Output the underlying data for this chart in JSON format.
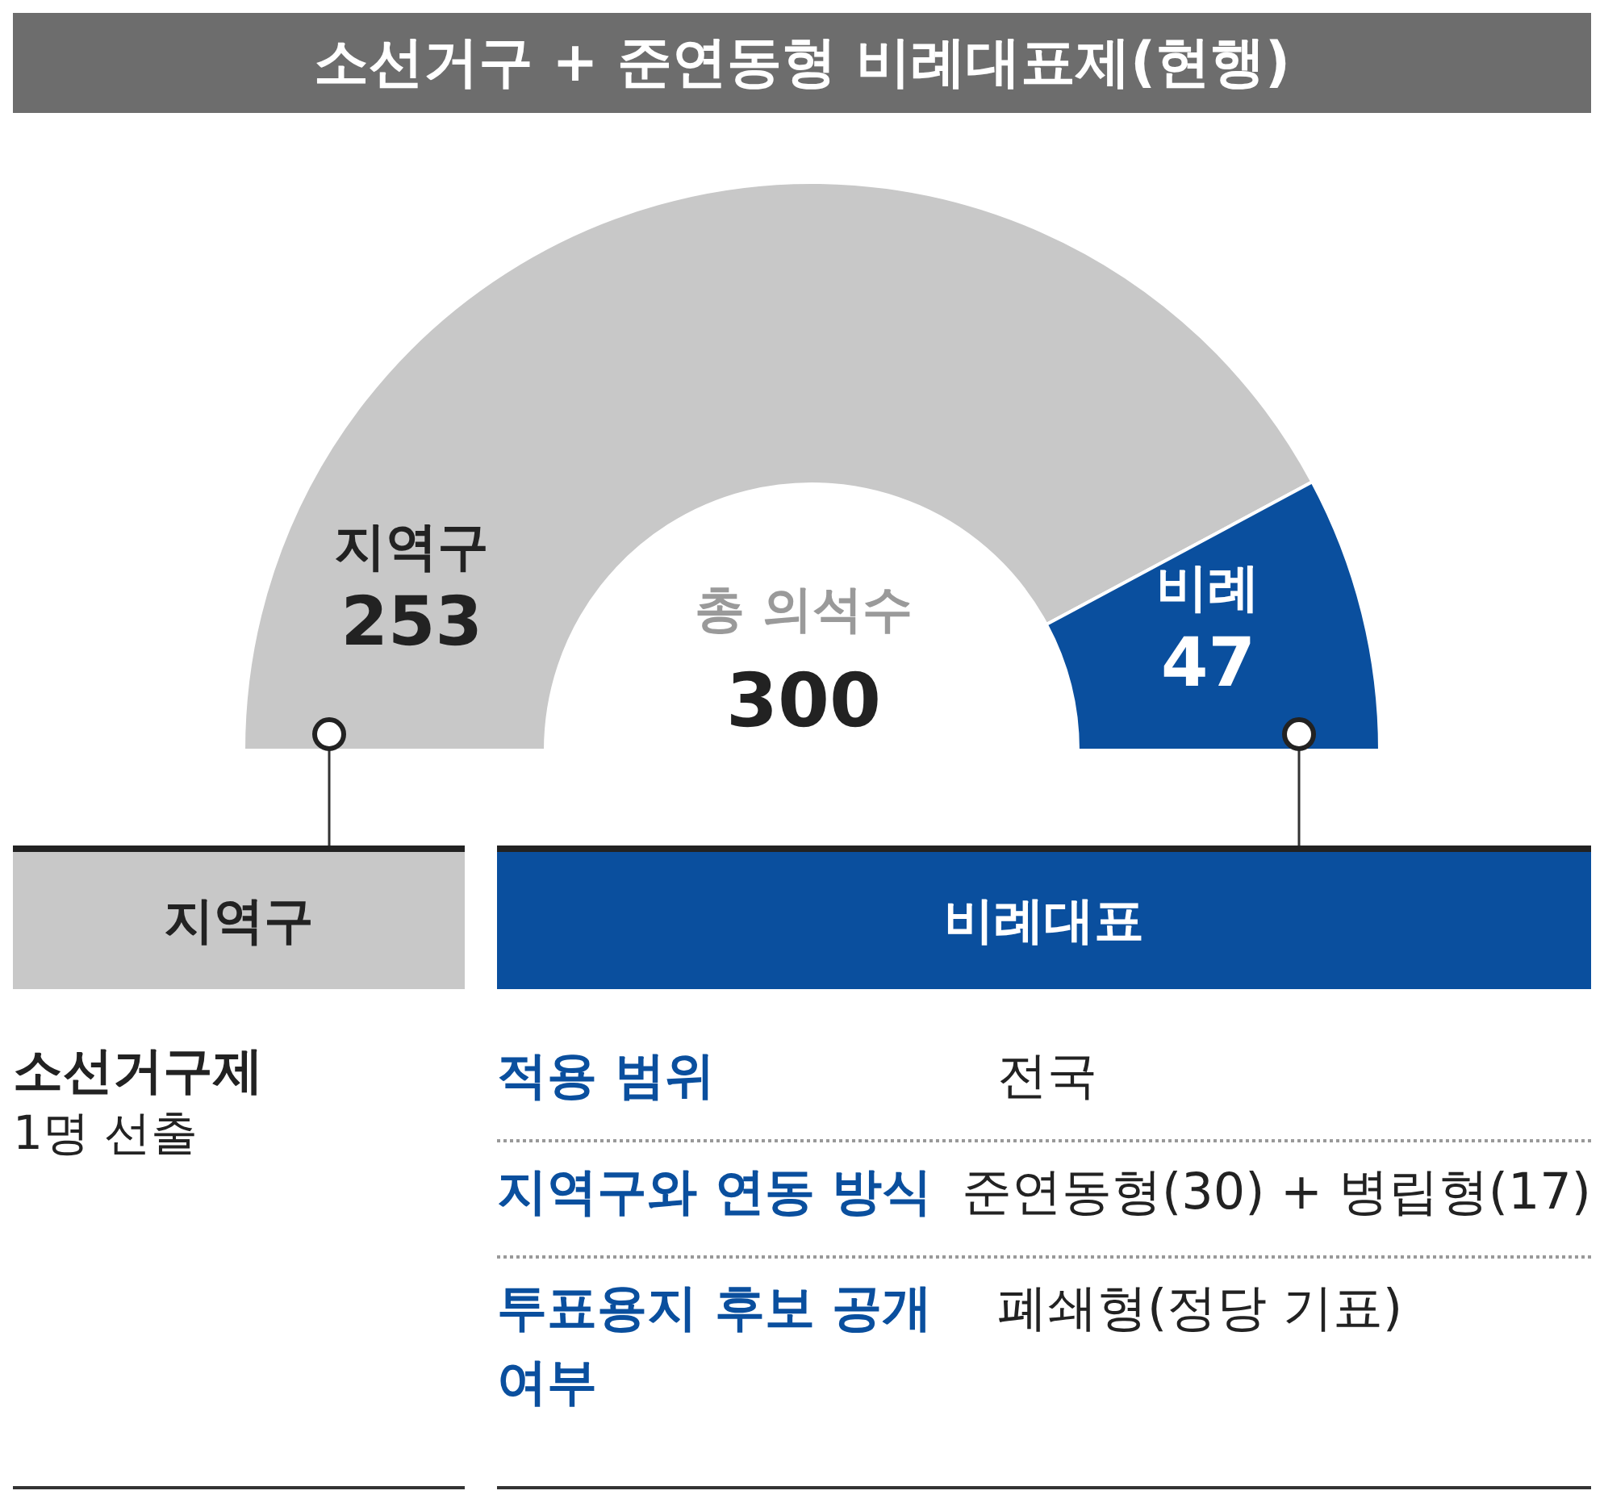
{
  "chart_data": {
    "type": "donut",
    "title": "소선거구 + 준연동형 비례대표제(현행)",
    "categories": [
      "지역구",
      "비례"
    ],
    "values": [
      253,
      47
    ],
    "colors": [
      "#c8c8c8",
      "#0a4f9e"
    ],
    "data_labels": true,
    "annotations": [
      "총 의석수",
      "300",
      "지역구",
      "비례대표",
      "소선거구제",
      "1명 선출",
      "적용 범위",
      "전국",
      "지역구와 연동 방식",
      "준연동형(30) + 병립형(17)",
      "투표용지 후보 공개 여부",
      "폐쇄형(정당 기표)"
    ]
  }
}
